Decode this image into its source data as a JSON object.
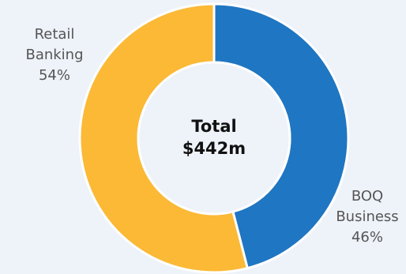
{
  "chart_data": {
    "type": "pie",
    "variant": "donut",
    "center_text": [
      "Total",
      "$442m"
    ],
    "slices": [
      {
        "name_lines": [
          "BOQ",
          "Business"
        ],
        "value": 46,
        "value_label": "46%",
        "color": "#1f76c2"
      },
      {
        "name_lines": [
          "Retail",
          "Banking"
        ],
        "value": 54,
        "value_label": "54%",
        "color": "#fbb936"
      }
    ],
    "start_angle": "12 o'clock",
    "direction": "clockwise",
    "separator_color": "#ffffff"
  }
}
